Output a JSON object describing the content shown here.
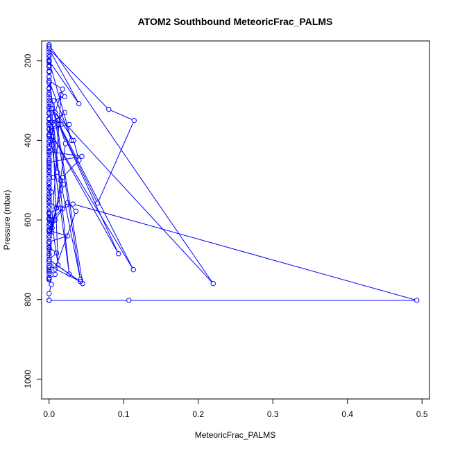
{
  "chart_data": {
    "type": "line",
    "title": "ATOM2 Southbound MeteoricFrac_PALMS",
    "xlabel": "MeteoricFrac_PALMS",
    "ylabel": "Pressure (mbar)",
    "xlim": [
      -0.01,
      0.51
    ],
    "ylim": [
      1050,
      150
    ],
    "y_inverted": true,
    "x_ticks": [
      "0.0",
      "0.1",
      "0.2",
      "0.3",
      "0.4",
      "0.5"
    ],
    "x_tick_values": [
      0,
      0.1,
      0.2,
      0.3,
      0.4,
      0.5
    ],
    "y_ticks": [
      "200",
      "400",
      "600",
      "800",
      "1000"
    ],
    "y_tick_values": [
      200,
      400,
      600,
      800,
      1000
    ],
    "grid": false,
    "legend": "none",
    "marker": "open-circle",
    "color": "#0000ff",
    "series": [
      {
        "x": [
          0.0,
          0.0,
          0.003,
          0.0,
          0.008,
          0.0,
          0.0,
          0.042,
          0.0,
          0.01,
          0.0,
          0.0,
          0.025,
          0.0,
          0.002,
          0.0,
          0.0,
          0.015,
          0.0,
          0.0,
          0.003,
          0.0,
          0.0,
          0.006,
          0.0,
          0.0,
          0.0,
          0.044,
          0.0,
          0.0,
          0.005,
          0.0,
          0.0,
          0.027,
          0.0,
          0.0,
          0.0,
          0.0,
          0.0,
          0.0,
          0.0,
          0.0,
          0.0,
          0.0,
          0.0,
          0.0,
          0.0,
          0.0,
          0.0,
          0.0,
          0.0,
          0.0,
          0.0,
          0.0,
          0.0,
          0.0,
          0.0,
          0.0,
          0.0,
          0.0,
          0.0,
          0.0,
          0.0,
          0.0,
          0.003,
          0.0,
          0.0,
          0.0,
          0.0,
          0.0,
          0.0,
          0.0,
          0.0,
          0.0,
          0.0,
          0.0,
          0.0,
          0.0,
          0.0,
          0.0,
          0.0,
          0.0,
          0.0,
          0.0,
          0.0,
          0.0,
          0.0,
          0.0,
          0.0,
          0.0,
          0.0,
          0.0,
          0.0,
          0.0,
          0.0,
          0.0,
          0.0,
          0.0,
          0.0,
          0.0,
          0.0,
          0.0,
          0.0,
          0.0,
          0.0,
          0.0,
          0.0,
          0.0,
          0.0,
          0.0,
          0.0,
          0.0,
          0.0,
          0.0,
          0.0,
          0.0,
          0.0
        ],
        "y": [
          802,
          785,
          762,
          748,
          737,
          726,
          715,
          755,
          700,
          683,
          668,
          655,
          640,
          627,
          612,
          598,
          583,
          570,
          556,
          543,
          530,
          518,
          505,
          493,
          480,
          468,
          455,
          440,
          428,
          415,
          400,
          387,
          373,
          360,
          347,
          333,
          320,
          307,
          293,
          280,
          268,
          255,
          240,
          228,
          215,
          203,
          190,
          178,
          165,
          160,
          170,
          185,
          198,
          212,
          226,
          240,
          255,
          270,
          285,
          300,
          315,
          330,
          345,
          360,
          375,
          390,
          405,
          420,
          435,
          450,
          465,
          480,
          495,
          510,
          525,
          540,
          555,
          570,
          585,
          600,
          615,
          630,
          645,
          660,
          675,
          690,
          705,
          720,
          735,
          750,
          745,
          730,
          715,
          700,
          685,
          670,
          655,
          640,
          625,
          610,
          595,
          580,
          565,
          550,
          535,
          520,
          505,
          490,
          475,
          460,
          445,
          430,
          415,
          400,
          385,
          370,
          355
        ]
      },
      {
        "x": [
          0.0,
          0.107,
          0.493,
          0.032,
          0.018,
          0.008,
          0.003,
          0.016,
          0.021,
          0.006,
          0.008,
          0.033,
          0.04,
          0.018,
          0.004,
          0.01,
          0.022,
          0.012,
          0.021,
          0.004,
          0.011,
          0.02,
          0.005,
          0.0,
          0.008,
          0.036,
          0.025,
          0.003,
          0.012,
          0.004,
          0.0
        ],
        "y": [
          802,
          802,
          802,
          560,
          572,
          600,
          630,
          285,
          290,
          300,
          330,
          400,
          450,
          493,
          620,
          570,
          408,
          350,
          330,
          355,
          480,
          510,
          600,
          700,
          724,
          578,
          556,
          600,
          713,
          330,
          360
        ]
      },
      {
        "x": [
          0.0,
          0.22,
          0.003,
          0.113,
          0.005,
          0.093,
          0.013,
          0.065,
          0.114,
          0.08,
          0.0,
          0.04,
          0.0,
          0.03,
          0.0
        ],
        "y": [
          160,
          760,
          320,
          725,
          390,
          685,
          360,
          558,
          350,
          322,
          170,
          308,
          200,
          400,
          250
        ]
      },
      {
        "x": [
          0.0,
          0.045,
          0.008,
          0.018,
          0.0,
          0.042,
          0.015,
          0.0,
          0.027,
          0.006,
          0.0
        ],
        "y": [
          700,
          760,
          330,
          271,
          250,
          750,
          500,
          360,
          736,
          360,
          420
        ]
      }
    ]
  }
}
